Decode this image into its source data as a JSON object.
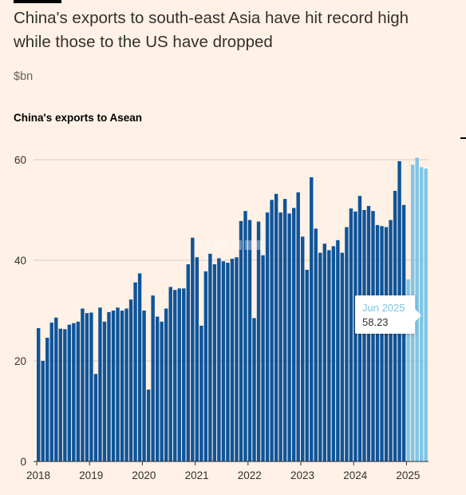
{
  "headline": "China's exports to south-east Asia have hit record high while those to the US have dropped",
  "unit_label": "$bn",
  "colors": {
    "background": "#fff1e5",
    "bar": "#0f5499",
    "highlight": "#7dc6e8",
    "grid": "#d9ccc1",
    "text": "#33302e"
  },
  "tooltip": {
    "date": "Jun 2025",
    "value": "58.23"
  },
  "chart_data": {
    "type": "bar",
    "title": "China's exports to Asean",
    "ylim": [
      0,
      60
    ],
    "yticks": [
      0,
      20,
      40,
      60
    ],
    "xticks": [
      "2018",
      "2019",
      "2020",
      "2021",
      "2022",
      "2023",
      "2024",
      "2025"
    ],
    "grid": true,
    "highlight_from": "2025-01",
    "series": [
      {
        "start": "2018-01",
        "values": [
          26.5,
          20.0,
          24.6,
          27.6,
          28.6,
          26.4,
          26.3,
          27.2,
          27.5,
          27.8,
          30.4,
          29.5,
          29.6,
          17.4,
          30.6,
          27.8,
          29.7,
          30.0,
          30.6,
          30.0,
          30.4,
          32.2,
          35.6,
          37.4,
          30.0,
          14.3,
          33.0,
          28.8,
          27.8,
          30.4,
          34.7,
          34.1,
          34.4,
          34.4,
          39.2,
          44.5,
          40.6,
          27.0,
          37.8,
          41.3,
          39.2,
          40.4,
          39.8,
          39.5,
          40.3,
          40.6,
          47.8,
          49.8,
          48.0,
          28.5,
          47.7,
          41.0,
          49.5,
          52.0,
          53.2,
          49.5,
          52.2,
          49.3,
          50.4,
          53.5,
          44.7,
          38.1,
          56.5,
          46.3,
          41.5,
          43.3,
          42.0,
          42.8,
          44.0,
          41.5,
          46.6,
          50.3,
          49.7,
          52.8,
          50.0,
          50.8,
          49.8,
          47.0,
          46.8,
          46.6,
          48.0,
          53.8,
          59.7,
          51.0,
          36.2,
          59.0,
          60.4,
          58.5,
          58.23
        ]
      }
    ]
  }
}
